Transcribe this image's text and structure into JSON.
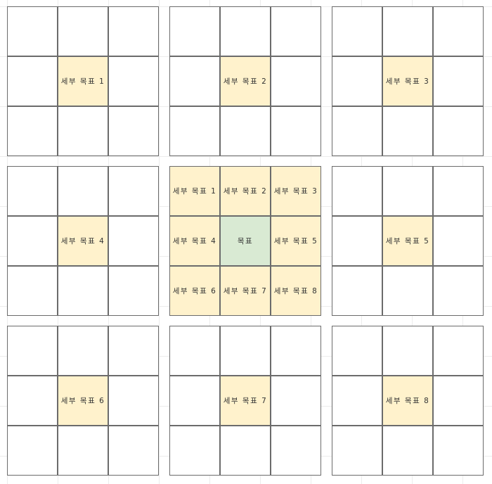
{
  "outer_blocks": [
    {
      "center": "세부 목표 1"
    },
    {
      "center": "세부 목표 2"
    },
    {
      "center": "세부 목표 3"
    },
    {
      "center": "세부 목표 4"
    },
    {
      "center": "세부 목표 5"
    },
    {
      "center": "세부 목표 6"
    },
    {
      "center": "세부 목표 7"
    },
    {
      "center": "세부 목표 8"
    }
  ],
  "core_block": {
    "cells": [
      "세부 목표 1",
      "세부 목표 2",
      "세부 목표 3",
      "세부 목표 4",
      "목표",
      "세부 목표 5",
      "세부 목표 6",
      "세부 목표 7",
      "세부 목표 8"
    ]
  }
}
